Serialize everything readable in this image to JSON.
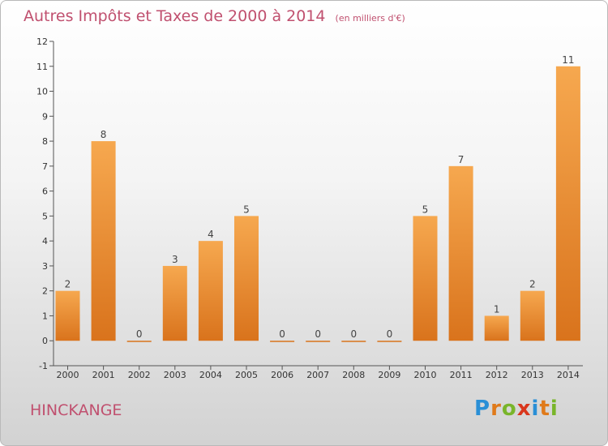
{
  "header": {
    "title": "Autres Impôts et Taxes de 2000 à 2014",
    "unit": "(en milliers d'€)"
  },
  "footer": {
    "commune": "HINCKANGE",
    "logo": "Proxiti"
  },
  "colors": {
    "title": "#c0506f",
    "bar_light": "#f6a84f",
    "bar_dark": "#d9731c"
  },
  "chart_data": {
    "type": "bar",
    "categories": [
      "2000",
      "2001",
      "2002",
      "2003",
      "2004",
      "2005",
      "2006",
      "2007",
      "2008",
      "2009",
      "2010",
      "2011",
      "2012",
      "2013",
      "2014"
    ],
    "values": [
      2,
      8,
      0,
      3,
      4,
      5,
      0,
      0,
      0,
      0,
      5,
      7,
      1,
      2,
      11
    ],
    "title": "Autres Impôts et Taxes de 2000 à 2014",
    "xlabel": "",
    "ylabel": "",
    "ylim": [
      -1,
      12
    ],
    "yticks": [
      -1,
      0,
      1,
      2,
      3,
      4,
      5,
      6,
      7,
      8,
      9,
      10,
      11,
      12
    ],
    "grid": false,
    "data_labels": true
  }
}
